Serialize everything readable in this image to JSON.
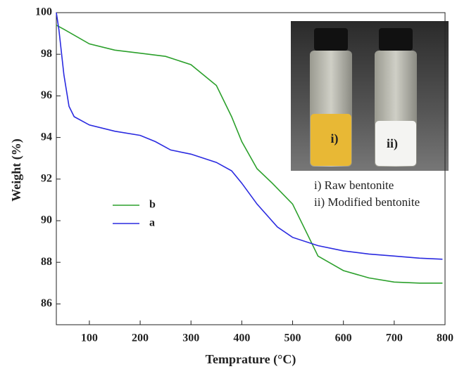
{
  "chart_data": {
    "type": "line",
    "x_label": "Temprature (°C)",
    "y_label": "Weight  (%)",
    "xlim": [
      35,
      800
    ],
    "ylim": [
      85,
      100
    ],
    "xticks": [
      100,
      200,
      300,
      400,
      500,
      600,
      700,
      800
    ],
    "yticks": [
      86,
      88,
      90,
      92,
      94,
      96,
      98,
      100
    ],
    "series": [
      {
        "name": "b",
        "color": "#2ca02c",
        "x": [
          35,
          50,
          100,
          150,
          200,
          250,
          300,
          350,
          380,
          400,
          430,
          460,
          500,
          530,
          550,
          600,
          650,
          700,
          750,
          795
        ],
        "values": [
          99.4,
          99.2,
          98.5,
          98.2,
          98.05,
          97.9,
          97.5,
          96.5,
          95,
          93.8,
          92.5,
          91.8,
          90.8,
          89.3,
          88.3,
          87.6,
          87.25,
          87.05,
          87.0,
          87.0
        ]
      },
      {
        "name": "a",
        "color": "#2a2ae0",
        "x": [
          35,
          40,
          50,
          60,
          70,
          100,
          150,
          200,
          230,
          260,
          300,
          350,
          380,
          400,
          430,
          470,
          500,
          550,
          600,
          650,
          700,
          750,
          795
        ],
        "values": [
          100,
          99.2,
          97,
          95.5,
          95,
          94.6,
          94.3,
          94.1,
          93.8,
          93.4,
          93.2,
          92.8,
          92.4,
          91.8,
          90.8,
          89.7,
          89.2,
          88.8,
          88.55,
          88.4,
          88.3,
          88.2,
          88.15
        ]
      }
    ],
    "photo_labels": [
      "i)",
      "ii)"
    ],
    "captions": [
      "i)  Raw bentonite",
      "ii) Modified bentonite"
    ]
  }
}
